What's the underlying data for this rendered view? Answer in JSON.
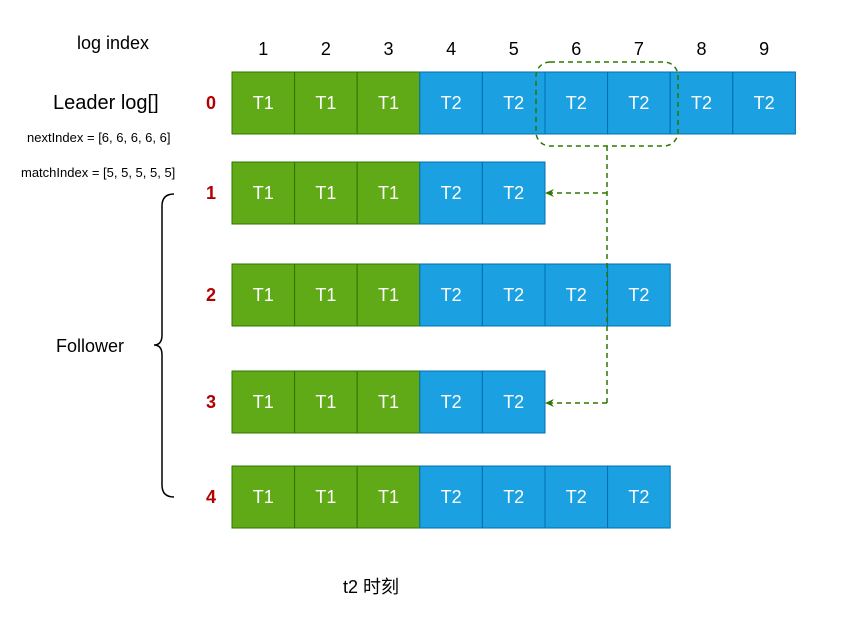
{
  "log_index_label": "log index",
  "indices": [
    "1",
    "2",
    "3",
    "4",
    "5",
    "6",
    "7",
    "8",
    "9"
  ],
  "leader_label": "Leader log[]",
  "next_index_text": "nextIndex = [6, 6, 6, 6, 6]",
  "match_index_text": "matchIndex = [5, 5, 5, 5, 5]",
  "follower_label": "Follower",
  "caption": "t2 时刻",
  "colors": {
    "T1": "#60a917",
    "T2": "#1ba1e2",
    "node_id": "#b20000",
    "arrow": "#2d7600"
  },
  "rows": [
    {
      "id": "0",
      "entries": [
        "T1",
        "T1",
        "T1",
        "T2",
        "T2",
        "T2",
        "T2",
        "T2",
        "T2"
      ]
    },
    {
      "id": "1",
      "entries": [
        "T1",
        "T1",
        "T1",
        "T2",
        "T2"
      ]
    },
    {
      "id": "2",
      "entries": [
        "T1",
        "T1",
        "T1",
        "T2",
        "T2",
        "T2",
        "T2"
      ]
    },
    {
      "id": "3",
      "entries": [
        "T1",
        "T1",
        "T1",
        "T2",
        "T2"
      ]
    },
    {
      "id": "4",
      "entries": [
        "T1",
        "T1",
        "T1",
        "T2",
        "T2",
        "T2",
        "T2"
      ]
    }
  ]
}
